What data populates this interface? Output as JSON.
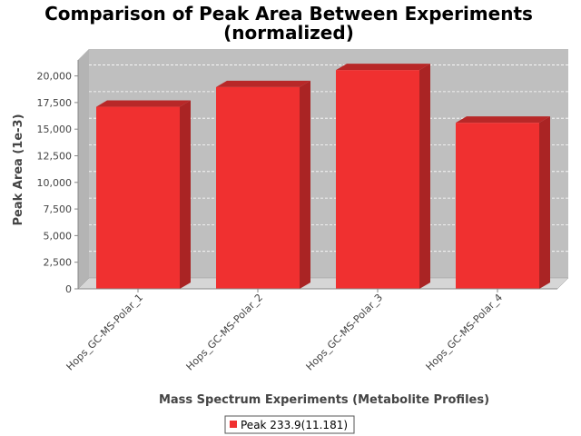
{
  "chart_data": {
    "type": "bar",
    "title_lines": [
      "Comparison of Peak Area Between Experiments",
      "(normalized)"
    ],
    "xlabel": "Mass Spectrum Experiments (Metabolite Profiles)",
    "ylabel": "Peak Area (1e-3)",
    "categories": [
      "Hops_GC-MS-Polar_1",
      "Hops_GC-MS-Polar_2",
      "Hops_GC-MS-Polar_3",
      "Hops_GC-MS-Polar_4"
    ],
    "series": [
      {
        "name": "Peak 233.9(11.181)",
        "values": [
          17100,
          18950,
          20550,
          15600
        ]
      }
    ],
    "ylim": [
      0,
      21500
    ],
    "yticks": [
      0,
      2500,
      5000,
      7500,
      10000,
      12500,
      15000,
      17500,
      20000
    ],
    "ytick_labels": [
      "0",
      "2,500",
      "5,000",
      "7,500",
      "10,000",
      "12,500",
      "15,000",
      "17,500",
      "20,000"
    ],
    "grid": true,
    "legend_position": "bottom-center",
    "colors": {
      "bar": "#f03030",
      "bar_top": "#b82828",
      "bar_side": "#aa2424",
      "plot_bg": "#bfbfbf",
      "plot_back_wall": "#c0c0c0",
      "floor": "#d6d6d6",
      "grid": "#ffffff"
    }
  }
}
